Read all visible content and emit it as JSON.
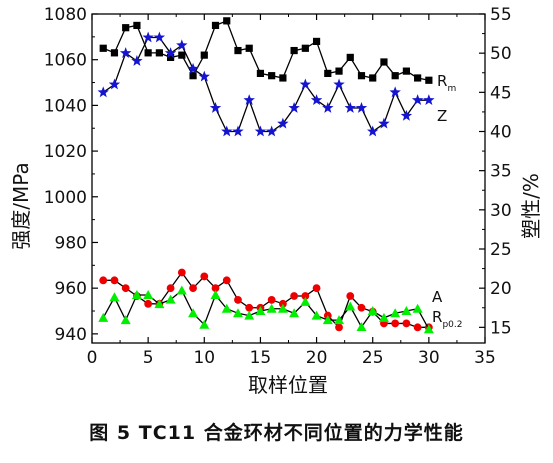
{
  "caption": "图 5 TC11 合金环材不同位置的力学性能",
  "chart_data": {
    "type": "line",
    "xlabel": "取样位置",
    "ylabel_left": "强度/MPa",
    "ylabel_right": "塑性/%",
    "xlim": [
      0,
      35
    ],
    "ylim_left": [
      936,
      1080
    ],
    "ylim_right": [
      13,
      55
    ],
    "xticks": [
      0,
      5,
      10,
      15,
      20,
      25,
      30,
      35
    ],
    "yticks_left": [
      940,
      960,
      980,
      1000,
      1020,
      1040,
      1060,
      1080
    ],
    "yticks_right": [
      15,
      20,
      25,
      30,
      35,
      40,
      45,
      50,
      55
    ],
    "grid": false,
    "series": [
      {
        "name": "Rm",
        "label_main": "R",
        "label_sub": "m",
        "axis": "left",
        "marker": "square",
        "color": "#000000",
        "x": [
          1,
          2,
          3,
          4,
          5,
          6,
          7,
          8,
          9,
          10,
          11,
          12,
          13,
          14,
          15,
          16,
          17,
          18,
          19,
          20,
          21,
          22,
          23,
          24,
          25,
          26,
          27,
          28,
          29,
          30
        ],
        "values": [
          1065,
          1063,
          1074,
          1075,
          1063,
          1063,
          1061,
          1062,
          1053,
          1062,
          1075,
          1077,
          1064,
          1065,
          1054,
          1053,
          1052,
          1064,
          1065,
          1068,
          1054,
          1055,
          1061,
          1053,
          1052,
          1059,
          1053,
          1055,
          1052,
          1051
        ]
      },
      {
        "name": "Z",
        "label_main": "Z",
        "label_sub": "",
        "axis": "right",
        "marker": "star",
        "color": "#1515d0",
        "x": [
          1,
          2,
          3,
          4,
          5,
          6,
          7,
          8,
          9,
          10,
          11,
          12,
          13,
          14,
          15,
          16,
          17,
          18,
          19,
          20,
          21,
          22,
          23,
          24,
          25,
          26,
          27,
          28,
          29,
          30
        ],
        "values": [
          45,
          46,
          50,
          49,
          52,
          52,
          50,
          51,
          48,
          47,
          43,
          40,
          40,
          44,
          40,
          40,
          41,
          43,
          46,
          44,
          43,
          46,
          43,
          43,
          40,
          41,
          45,
          42,
          44,
          44
        ]
      },
      {
        "name": "A",
        "label_main": "A",
        "label_sub": "",
        "axis": "right",
        "marker": "circle",
        "color": "#ee0000",
        "x": [
          1,
          2,
          3,
          4,
          5,
          6,
          7,
          8,
          9,
          10,
          11,
          12,
          13,
          14,
          15,
          16,
          17,
          18,
          19,
          20,
          21,
          22,
          23,
          24,
          25,
          26,
          27,
          28,
          29,
          30
        ],
        "values": [
          21,
          21,
          20,
          19,
          18,
          18,
          20,
          22,
          20,
          21.5,
          20,
          21,
          18.5,
          17.5,
          17.5,
          18.5,
          18,
          19,
          19,
          20,
          16.5,
          15,
          19,
          17.5,
          17,
          15.5,
          15.5,
          15.5,
          15,
          15
        ]
      },
      {
        "name": "Rp0.2",
        "label_main": "R",
        "label_sub": "p0.2",
        "axis": "left",
        "marker": "triangle",
        "color": "#00ee00",
        "x": [
          1,
          2,
          3,
          4,
          5,
          6,
          7,
          8,
          9,
          10,
          11,
          12,
          13,
          14,
          15,
          16,
          17,
          18,
          19,
          20,
          21,
          22,
          23,
          24,
          25,
          26,
          27,
          28,
          29,
          30
        ],
        "values": [
          947,
          956,
          946,
          957,
          957,
          953,
          955,
          959,
          949,
          944,
          957,
          951,
          949,
          948,
          950,
          951,
          951,
          949,
          954,
          948,
          946,
          946,
          952,
          943,
          950,
          947,
          949,
          950,
          951,
          942
        ]
      }
    ]
  }
}
